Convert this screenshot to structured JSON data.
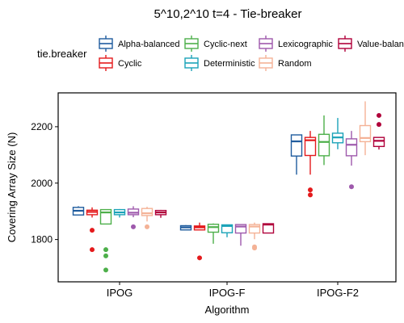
{
  "chart_data": {
    "type": "boxplot",
    "title": "5^10,2^10 t=4 - Tie-breaker",
    "xlabel": "Algorithm",
    "ylabel": "Covering Array Size (N)",
    "legend_title": "tie.breaker",
    "legend_position": "top",
    "grid": false,
    "categories": [
      "IPOG",
      "IPOG-F",
      "IPOG-F2"
    ],
    "ylim": [
      1650,
      2320
    ],
    "yticks": [
      1800,
      2000,
      2200
    ],
    "series": [
      {
        "name": "Alpha-balanced",
        "color": "#1f5c9e",
        "boxes": [
          {
            "whisker_low": 1887,
            "q1": 1887,
            "median": 1902,
            "q3": 1914,
            "whisker_high": 1918,
            "outliers": []
          },
          {
            "whisker_low": 1834,
            "q1": 1834,
            "median": 1843,
            "q3": 1849,
            "whisker_high": 1851,
            "outliers": []
          },
          {
            "whisker_low": 2030,
            "q1": 2096,
            "median": 2148,
            "q3": 2171,
            "whisker_high": 2171,
            "outliers": []
          }
        ]
      },
      {
        "name": "Cyclic",
        "color": "#e41a1c",
        "boxes": [
          {
            "whisker_low": 1878,
            "q1": 1888,
            "median": 1898,
            "q3": 1904,
            "whisker_high": 1914,
            "outliers": [
              1833,
              1764
            ]
          },
          {
            "whisker_low": 1834,
            "q1": 1834,
            "median": 1843,
            "q3": 1848,
            "whisker_high": 1860,
            "outliers": [
              1735
            ]
          },
          {
            "whisker_low": 2030,
            "q1": 2098,
            "median": 2152,
            "q3": 2162,
            "whisker_high": 2185,
            "outliers": [
              1976,
              1958
            ]
          }
        ]
      },
      {
        "name": "Cyclic-next",
        "color": "#4daf4a",
        "boxes": [
          {
            "whisker_low": 1855,
            "q1": 1855,
            "median": 1896,
            "q3": 1906,
            "whisker_high": 1906,
            "outliers": [
              1764,
              1742,
              1692
            ]
          },
          {
            "whisker_low": 1785,
            "q1": 1826,
            "median": 1844,
            "q3": 1854,
            "whisker_high": 1857,
            "outliers": []
          },
          {
            "whisker_low": 2064,
            "q1": 2097,
            "median": 2146,
            "q3": 2173,
            "whisker_high": 2240,
            "outliers": []
          }
        ]
      },
      {
        "name": "Deterministic",
        "color": "#1ba3b8",
        "boxes": [
          {
            "whisker_low": 1878,
            "q1": 1888,
            "median": 1896,
            "q3": 1906,
            "whisker_high": 1908,
            "outliers": []
          },
          {
            "whisker_low": 1808,
            "q1": 1824,
            "median": 1848,
            "q3": 1852,
            "whisker_high": 1852,
            "outliers": []
          },
          {
            "whisker_low": 2120,
            "q1": 2143,
            "median": 2162,
            "q3": 2177,
            "whisker_high": 2231,
            "outliers": []
          }
        ]
      },
      {
        "name": "Lexicographic",
        "color": "#9e59ac",
        "boxes": [
          {
            "whisker_low": 1879,
            "q1": 1888,
            "median": 1895,
            "q3": 1908,
            "whisker_high": 1918,
            "outliers": [
              1845
            ]
          },
          {
            "whisker_low": 1778,
            "q1": 1823,
            "median": 1846,
            "q3": 1853,
            "whisker_high": 1853,
            "outliers": []
          },
          {
            "whisker_low": 2062,
            "q1": 2097,
            "median": 2136,
            "q3": 2157,
            "whisker_high": 2185,
            "outliers": [
              1987
            ]
          }
        ]
      },
      {
        "name": "Random",
        "color": "#f4b296",
        "boxes": [
          {
            "whisker_low": 1864,
            "q1": 1885,
            "median": 1893,
            "q3": 1910,
            "whisker_high": 1916,
            "outliers": [
              1845
            ]
          },
          {
            "whisker_low": 1801,
            "q1": 1823,
            "median": 1846,
            "q3": 1853,
            "whisker_high": 1860,
            "outliers": [
              1774,
              1770
            ]
          },
          {
            "whisker_low": 2099,
            "q1": 2147,
            "median": 2160,
            "q3": 2204,
            "whisker_high": 2290,
            "outliers": []
          }
        ]
      },
      {
        "name": "Value-balanced",
        "color": "#b0003a",
        "boxes": [
          {
            "whisker_low": 1877,
            "q1": 1888,
            "median": 1896,
            "q3": 1903,
            "whisker_high": 1905,
            "outliers": []
          },
          {
            "whisker_low": 1823,
            "q1": 1823,
            "median": 1853,
            "q3": 1856,
            "whisker_high": 1856,
            "outliers": []
          },
          {
            "whisker_low": 2119,
            "q1": 2130,
            "median": 2150,
            "q3": 2162,
            "whisker_high": 2162,
            "outliers": [
              2240,
              2208
            ]
          }
        ]
      }
    ]
  }
}
